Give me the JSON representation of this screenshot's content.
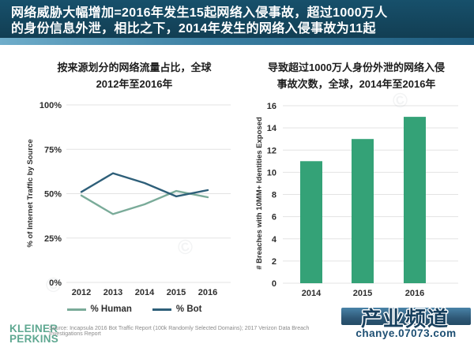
{
  "header": {
    "line1": "网络威胁大幅增加=2016年发生15起网络入侵事故，超过1000万人",
    "line2": "的身份信息外泄，相比之下，2014年发生的网络入侵事故为11起"
  },
  "chart_data": [
    {
      "type": "line",
      "title": "按来源划分的网络流量占比，全球 2012年至2016年",
      "title_line1": "按来源划分的网络流量占比，全球",
      "title_line2": "2012年至2016年",
      "ylabel": "% of Internet Traffic by Source",
      "x": [
        "2012",
        "2013",
        "2014",
        "2015",
        "2016"
      ],
      "series": [
        {
          "name": "% Human",
          "color": "#7aab99",
          "values": [
            49,
            38.5,
            44,
            51.5,
            48
          ]
        },
        {
          "name": "% Bot",
          "color": "#2e5f79",
          "values": [
            51,
            61.5,
            56,
            48.5,
            52
          ]
        }
      ],
      "ylim": [
        0,
        100
      ],
      "yticks": [
        0,
        25,
        50,
        75,
        100
      ],
      "ytick_labels": [
        "0%",
        "25%",
        "50%",
        "75%",
        "100%"
      ],
      "grid": true,
      "legend_position": "bottom"
    },
    {
      "type": "bar",
      "title": "导致超过1000万人身份外泄的网络入侵事故次数，全球，2014年至2016年",
      "title_line1": "导致超过1000万人身份外泄的网络入侵",
      "title_line2": "事故次数，全球，2014年至2016年",
      "ylabel": "# Breaches with 10MM+ Identities Exposed",
      "categories": [
        "2014",
        "2015",
        "2016"
      ],
      "values": [
        11,
        13,
        15
      ],
      "bar_color": "#34a277",
      "ylim": [
        0,
        16
      ],
      "yticks": [
        0,
        2,
        4,
        6,
        8,
        10,
        12,
        14,
        16
      ],
      "grid": true
    }
  ],
  "footer": {
    "logo_line1": "KLEINER",
    "logo_line2": "PERKINS",
    "source": "Source: Incapsula 2016 Bot Traffic Report (100k Randomly Selected Domains); 2017 Verizon Data Breach Investigations Report"
  },
  "watermark": {
    "title": "产业频道",
    "url": "chanye.07073.com",
    "stamp_glyph": "©"
  },
  "colors": {
    "header_bg": "#123e53",
    "accent_strip": "#3a7ea1",
    "human_line": "#7aab99",
    "bot_line": "#2e5f79",
    "bar_green": "#34a277",
    "kp_logo_green": "#5fa891",
    "watermark_blue": "#173f5d"
  }
}
